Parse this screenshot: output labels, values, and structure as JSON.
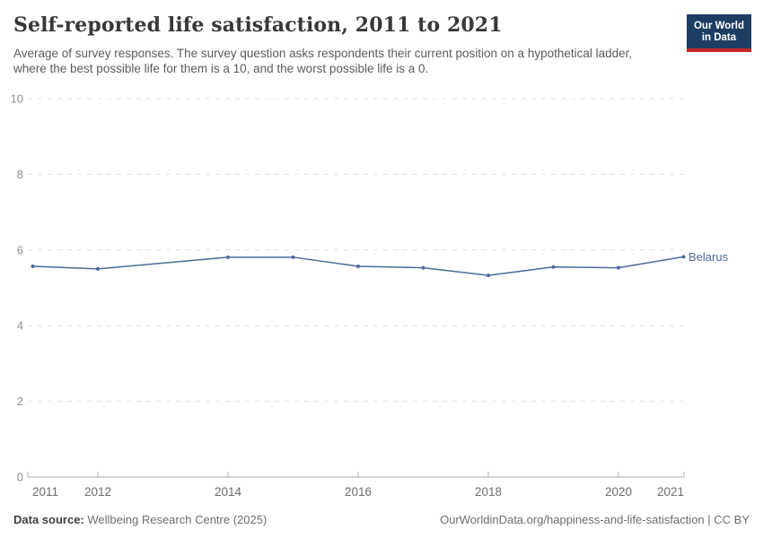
{
  "header": {
    "title": "Self-reported life satisfaction, 2011 to 2021",
    "subtitle": "Average of survey responses. The survey question asks respondents their current position on a hypothetical ladder, where the best possible life for them is a 10, and the worst possible life is a 0."
  },
  "logo": {
    "line1": "Our World",
    "line2": "in Data",
    "bg_color": "#1d3d63",
    "stripe_color": "#c72728",
    "text_color": "#ffffff"
  },
  "footer": {
    "datasource_label": "Data source:",
    "datasource_value": " Wellbeing Research Centre (2025)",
    "url_text": "OurWorldinData.org/happiness-and-life-satisfaction",
    "separator": " | ",
    "license_text": "CC BY"
  },
  "chart_data": {
    "type": "line",
    "title": "Self-reported life satisfaction, 2011 to 2021",
    "xlabel": "",
    "ylabel": "",
    "xlim": [
      2011,
      2021
    ],
    "ylim": [
      0,
      10
    ],
    "yticks": [
      0,
      2,
      4,
      6,
      8,
      10
    ],
    "xticks": [
      2011,
      2012,
      2014,
      2016,
      2018,
      2020,
      2021
    ],
    "grid": "horizontal-dashed",
    "legend_position": "end-of-line-label",
    "series": [
      {
        "name": "Belarus",
        "color": "#4C6A9C",
        "points": [
          {
            "x": 2011,
            "y": 5.57
          },
          {
            "x": 2012,
            "y": 5.5
          },
          {
            "x": 2014,
            "y": 5.81
          },
          {
            "x": 2015,
            "y": 5.81
          },
          {
            "x": 2016,
            "y": 5.57
          },
          {
            "x": 2017,
            "y": 5.53
          },
          {
            "x": 2018,
            "y": 5.33
          },
          {
            "x": 2019,
            "y": 5.55
          },
          {
            "x": 2020,
            "y": 5.53
          },
          {
            "x": 2021,
            "y": 5.82
          }
        ]
      }
    ]
  }
}
